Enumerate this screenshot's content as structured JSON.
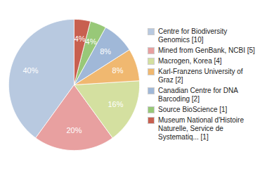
{
  "chart_data": {
    "type": "pie",
    "categories": [
      "Centre for Biodiversity\nGenomics [10]",
      "Mined from GenBank, NCBI [5]",
      "Macrogen, Korea [4]",
      "Karl-Franzens University of\nGraz [2]",
      "Canadian Centre for DNA\nBarcoding [2]",
      "Source BioScience [1]",
      "Museum National d'Histoire\nNaturelle, Service de\nSystematiq... [1]"
    ],
    "values": [
      40,
      20,
      16,
      8,
      8,
      4,
      4
    ],
    "value_labels": [
      "40%",
      "20%",
      "16%",
      "8%",
      "8%",
      "4%",
      "4%"
    ],
    "colors": [
      "#b8c9e0",
      "#e8a0a0",
      "#d4e0a0",
      "#f0b870",
      "#a0b8d8",
      "#98c878",
      "#c86050"
    ],
    "data_labels": true,
    "legend": "right"
  }
}
